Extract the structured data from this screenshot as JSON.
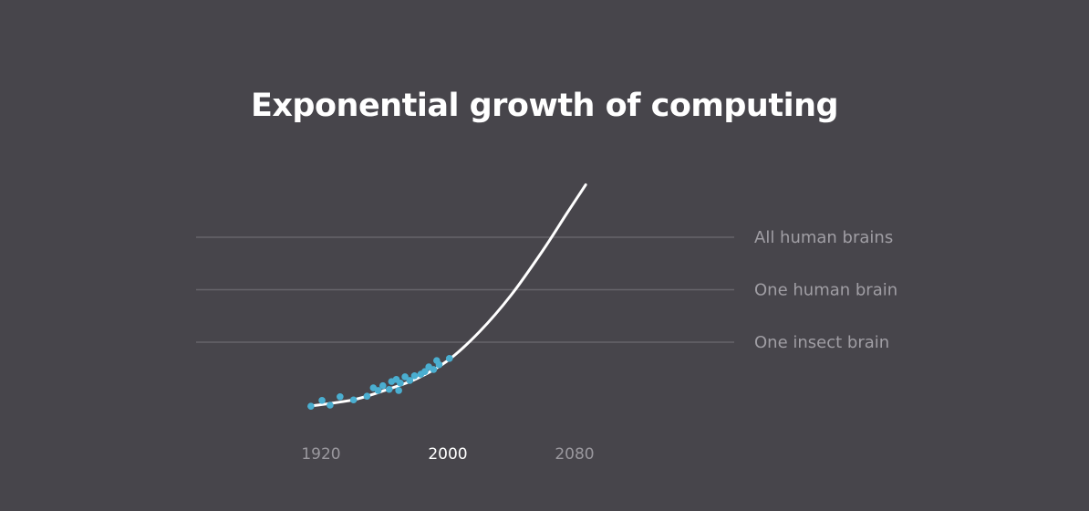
{
  "chart_data": {
    "type": "line",
    "title": "Exponential growth of computing",
    "xlabel": "",
    "ylabel": "",
    "x_ticks": [
      {
        "value": 1920,
        "label": "1920",
        "highlight": false
      },
      {
        "value": 2000,
        "label": "2000",
        "highlight": true
      },
      {
        "value": 2080,
        "label": "2080",
        "highlight": false
      }
    ],
    "xlim": [
      1913,
      2087
    ],
    "ylim": [
      -0.22,
      4.0
    ],
    "reference_lines": [
      {
        "level": 1,
        "label": "One insect brain"
      },
      {
        "level": 2,
        "label": "One human brain"
      },
      {
        "level": 3,
        "label": "All human brains"
      }
    ],
    "trend_curve": {
      "color": "#ffffff",
      "points": [
        [
          1913,
          -0.22
        ],
        [
          1940,
          -0.1
        ],
        [
          1960,
          0.08
        ],
        [
          1980,
          0.3
        ],
        [
          2000,
          0.65
        ],
        [
          2020,
          1.2
        ],
        [
          2040,
          1.9
        ],
        [
          2060,
          2.75
        ],
        [
          2075,
          3.45
        ],
        [
          2087,
          4.0
        ]
      ]
    },
    "observations": {
      "color": "#4aaed0",
      "points": [
        [
          1913.6,
          -0.22
        ],
        [
          1920.6,
          -0.11
        ],
        [
          1925.7,
          -0.2
        ],
        [
          1932,
          -0.04
        ],
        [
          1940.5,
          -0.1
        ],
        [
          1949,
          -0.03
        ],
        [
          1953,
          0.13
        ],
        [
          1956,
          0.08
        ],
        [
          1959,
          0.17
        ],
        [
          1963,
          0.1
        ],
        [
          1964.5,
          0.25
        ],
        [
          1967.5,
          0.29
        ],
        [
          1970,
          0.22
        ],
        [
          1969,
          0.08
        ],
        [
          1973,
          0.34
        ],
        [
          1976,
          0.27
        ],
        [
          1979,
          0.36
        ],
        [
          1983,
          0.39
        ],
        [
          1985.5,
          0.44
        ],
        [
          1988,
          0.53
        ],
        [
          1991,
          0.48
        ],
        [
          1993,
          0.65
        ],
        [
          1994.5,
          0.57
        ],
        [
          2001,
          0.69
        ]
      ]
    },
    "grid": false,
    "legend": "none"
  },
  "colors": {
    "background": "#47454b",
    "reference_line": "#67656b"
  }
}
